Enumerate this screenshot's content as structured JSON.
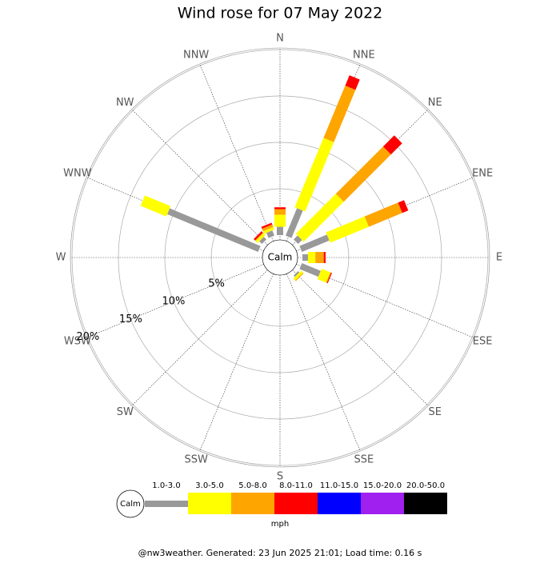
{
  "chart_data": {
    "type": "windrose",
    "title": "Wind rose for 07 May 2022",
    "center_label": "Calm",
    "directions": [
      "N",
      "NNE",
      "NE",
      "ENE",
      "E",
      "ESE",
      "SE",
      "SSE",
      "S",
      "SSW",
      "SW",
      "WSW",
      "W",
      "WNW",
      "NW",
      "NNW"
    ],
    "rlim": [
      0,
      20
    ],
    "rticks": [
      {
        "value": 5,
        "label": "5%"
      },
      {
        "value": 10,
        "label": "10%"
      },
      {
        "value": 15,
        "label": "15%"
      },
      {
        "value": 20,
        "label": "20%"
      }
    ],
    "series": [
      {
        "name": "1.0-3.0",
        "color": "#999999",
        "values": [
          0.9,
          3.2,
          0.6,
          3.2,
          0.6,
          2.2,
          0.2,
          0,
          0,
          0,
          0,
          0,
          0,
          10.6,
          0.4,
          0.6
        ]
      },
      {
        "name": "3.0-5.0",
        "color": "#ffff00",
        "values": [
          1.3,
          8.1,
          6.1,
          4.5,
          0.8,
          1.0,
          0.3,
          0,
          0,
          0,
          0,
          0,
          0,
          3.0,
          0.3,
          0.3
        ]
      },
      {
        "name": "5.0-8.0",
        "color": "#ffa500",
        "values": [
          0.6,
          6.1,
          7.2,
          3.9,
          0.9,
          0.1,
          0.1,
          0,
          0,
          0,
          0,
          0,
          0,
          0,
          0.1,
          0.3
        ]
      },
      {
        "name": "8.0-11.0",
        "color": "#ff0000",
        "values": [
          0.2,
          1.2,
          1.7,
          0.7,
          0.2,
          0.1,
          0,
          0,
          0,
          0,
          0,
          0,
          0,
          0,
          0.2,
          0.2
        ]
      },
      {
        "name": "11.0-15.0",
        "color": "#0000ff",
        "values": [
          0,
          0,
          0,
          0,
          0,
          0,
          0,
          0,
          0,
          0,
          0,
          0,
          0,
          0,
          0,
          0
        ]
      },
      {
        "name": "15.0-20.0",
        "color": "#a020f0",
        "values": [
          0,
          0,
          0,
          0,
          0,
          0,
          0,
          0,
          0,
          0,
          0,
          0,
          0,
          0,
          0,
          0
        ]
      },
      {
        "name": "20.0-50.0",
        "color": "#000000",
        "values": [
          0,
          0,
          0,
          0,
          0,
          0,
          0,
          0,
          0,
          0,
          0,
          0,
          0,
          0,
          0,
          0
        ]
      }
    ],
    "legend_unit": "mph",
    "footer": "@nw3weather. Generated: 23 Jun 2025 21:01; Load time: 0.16 s"
  }
}
